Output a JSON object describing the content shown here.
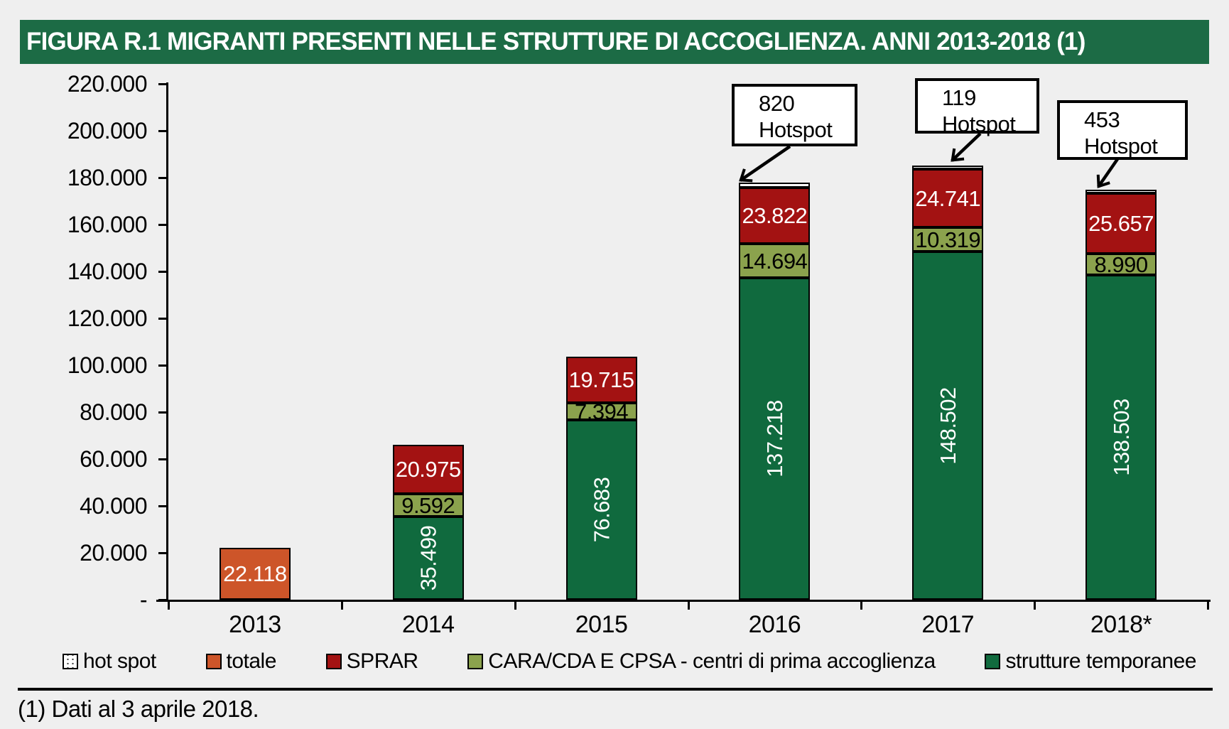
{
  "title": "FIGURA R.1 MIGRANTI PRESENTI NELLE STRUTTURE DI ACCOGLIENZA. ANNI 2013-2018 (1)",
  "footnote": "(1) Dati al 3 aprile 2018.",
  "colors": {
    "background": "#EFEFEF",
    "title_bg": "#1C6B45",
    "strutture": "#106A3E",
    "cara": "#8BA24D",
    "sprar": "#A31212",
    "totale": "#CD5529",
    "hotspot": "#FFFFFF",
    "border": "#000000"
  },
  "y_axis": {
    "tick_labels": [
      "220.000",
      "200.000",
      "180.000",
      "160.000",
      "140.000",
      "120.000",
      "100.000",
      "80.000",
      "60.000",
      "40.000",
      "20.000",
      "-"
    ]
  },
  "legend": [
    {
      "key": "hotspot",
      "label": "hot spot"
    },
    {
      "key": "totale",
      "label": "totale"
    },
    {
      "key": "sprar",
      "label": "SPRAR"
    },
    {
      "key": "cara",
      "label": "CARA/CDA E CPSA - centri di prima accoglienza"
    },
    {
      "key": "strutture",
      "label": "strutture temporanee"
    }
  ],
  "chart_data": {
    "type": "bar",
    "stacked": true,
    "title": "FIGURA R.1 MIGRANTI PRESENTI NELLE STRUTTURE DI ACCOGLIENZA. ANNI 2013-2018 (1)",
    "categories": [
      "2013",
      "2014",
      "2015",
      "2016",
      "2017",
      "2018*"
    ],
    "ylim": [
      0,
      220000
    ],
    "y_tick_interval": 20000,
    "grid": false,
    "legend_position": "bottom",
    "series": [
      {
        "name": "strutture temporanee",
        "key": "strutture",
        "color": "#106A3E",
        "values": [
          null,
          35499,
          76683,
          137218,
          148502,
          138503
        ]
      },
      {
        "name": "CARA/CDA E CPSA - centri di prima accoglienza",
        "key": "cara",
        "color": "#8BA24D",
        "values": [
          null,
          9592,
          7394,
          14694,
          10319,
          8990
        ]
      },
      {
        "name": "SPRAR",
        "key": "sprar",
        "color": "#A31212",
        "values": [
          null,
          20975,
          19715,
          23822,
          24741,
          25657
        ]
      },
      {
        "name": "hot spot",
        "key": "hotspot",
        "color": "#FFFFFF",
        "values": [
          null,
          null,
          null,
          820,
          119,
          453
        ]
      },
      {
        "name": "totale",
        "key": "totale",
        "color": "#CD5529",
        "values": [
          22118,
          null,
          null,
          null,
          null,
          null
        ]
      }
    ],
    "bars": [
      {
        "category": "2013",
        "segments": [
          {
            "key": "totale",
            "value": 22118,
            "label": "22.118",
            "style": "white-h"
          }
        ]
      },
      {
        "category": "2014",
        "segments": [
          {
            "key": "strutture",
            "value": 35499,
            "label": "35.499",
            "style": "white-v"
          },
          {
            "key": "cara",
            "value": 9592,
            "label": "9.592",
            "style": "black-h"
          },
          {
            "key": "sprar",
            "value": 20975,
            "label": "20.975",
            "style": "white-h"
          }
        ]
      },
      {
        "category": "2015",
        "segments": [
          {
            "key": "strutture",
            "value": 76683,
            "label": "76.683",
            "style": "white-v"
          },
          {
            "key": "cara",
            "value": 7394,
            "label": "7.394",
            "style": "black-h"
          },
          {
            "key": "sprar",
            "value": 19715,
            "label": "19.715",
            "style": "white-h"
          }
        ]
      },
      {
        "category": "2016",
        "segments": [
          {
            "key": "strutture",
            "value": 137218,
            "label": "137.218",
            "style": "white-v"
          },
          {
            "key": "cara",
            "value": 14694,
            "label": "14.694",
            "style": "black-h"
          },
          {
            "key": "sprar",
            "value": 23822,
            "label": "23.822",
            "style": "white-h"
          },
          {
            "key": "hotspot",
            "value": 820,
            "label": "",
            "style": ""
          }
        ]
      },
      {
        "category": "2017",
        "segments": [
          {
            "key": "strutture",
            "value": 148502,
            "label": "148.502",
            "style": "white-v"
          },
          {
            "key": "cara",
            "value": 10319,
            "label": "10.319",
            "style": "black-h"
          },
          {
            "key": "sprar",
            "value": 24741,
            "label": "24.741",
            "style": "white-h"
          },
          {
            "key": "hotspot",
            "value": 119,
            "label": "",
            "style": ""
          }
        ]
      },
      {
        "category": "2018*",
        "segments": [
          {
            "key": "strutture",
            "value": 138503,
            "label": "138.503",
            "style": "white-v"
          },
          {
            "key": "cara",
            "value": 8990,
            "label": "8.990",
            "style": "black-h"
          },
          {
            "key": "sprar",
            "value": 25657,
            "label": "25.657",
            "style": "white-h"
          },
          {
            "key": "hotspot",
            "value": 453,
            "label": "",
            "style": ""
          }
        ]
      }
    ],
    "annotations": [
      {
        "value": "820",
        "label": "Hotspot",
        "category": "2016"
      },
      {
        "value": "119",
        "label": "Hotspot",
        "category": "2017"
      },
      {
        "value": "453",
        "label": "Hotspot",
        "category": "2018*"
      }
    ]
  }
}
